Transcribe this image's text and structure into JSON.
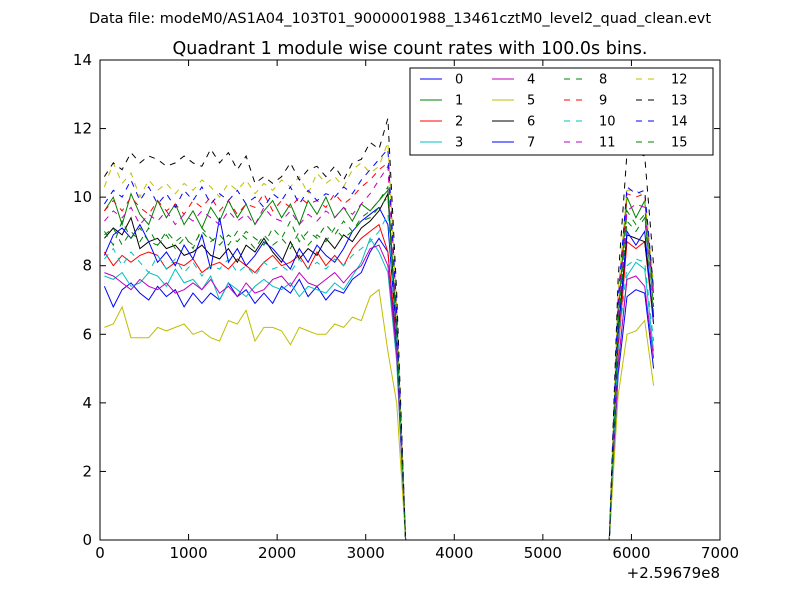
{
  "chart_data": {
    "type": "line",
    "suptitle": "Data file: modeM0/AS1A04_103T01_9000001988_13461cztM0_level2_quad_clean.evt",
    "title": "Quadrant 1 module wise count rates with 100.0s bins.",
    "xlabel": "",
    "ylabel": "",
    "xlim": [
      0,
      7000
    ],
    "ylim": [
      0,
      14
    ],
    "x_ticks": [
      0,
      1000,
      2000,
      3000,
      4000,
      5000,
      6000,
      7000
    ],
    "y_ticks": [
      0,
      2,
      4,
      6,
      8,
      10,
      12,
      14
    ],
    "x_offset_label": "+2.59679e8",
    "grid": false,
    "legend": {
      "position": "top-right",
      "columns": 4
    },
    "x": [
      50,
      150,
      250,
      350,
      450,
      550,
      650,
      750,
      850,
      950,
      1050,
      1150,
      1250,
      1350,
      1450,
      1550,
      1650,
      1750,
      1850,
      1950,
      2050,
      2150,
      2250,
      2350,
      2450,
      2550,
      2650,
      2750,
      2850,
      2950,
      3050,
      3150,
      3250,
      3350,
      3450,
      3550,
      3650,
      3750,
      3850,
      3950,
      4050,
      4150,
      4250,
      4350,
      4450,
      4550,
      4650,
      4750,
      4850,
      4950,
      5050,
      5150,
      5250,
      5350,
      5450,
      5550,
      5650,
      5750,
      5850,
      5950,
      6050,
      6150,
      6250
    ],
    "series": [
      {
        "name": "0",
        "color": "#0000ff",
        "dash": "solid",
        "values": [
          7.4,
          6.8,
          7.3,
          7.5,
          7.2,
          7.0,
          7.4,
          7.1,
          7.3,
          6.8,
          7.2,
          6.9,
          7.2,
          7.0,
          7.5,
          7.1,
          7.3,
          6.9,
          7.2,
          6.9,
          7.4,
          7.2,
          7.6,
          7.1,
          7.4,
          7.0,
          7.3,
          7.2,
          7.6,
          7.8,
          8.4,
          8.8,
          8.4,
          5.5,
          0,
          0,
          0,
          0,
          0,
          0,
          0,
          0,
          0,
          0,
          0,
          0,
          0,
          0,
          0,
          0,
          0,
          0,
          0,
          0,
          0,
          0,
          0,
          0,
          4.8,
          7.1,
          7.3,
          7.2,
          5.0
        ]
      },
      {
        "name": "1",
        "color": "#008000",
        "dash": "solid",
        "values": [
          9.6,
          10.0,
          9.2,
          10.1,
          9.5,
          9.2,
          9.9,
          9.4,
          9.8,
          9.2,
          9.6,
          9.1,
          9.7,
          9.3,
          9.9,
          9.4,
          9.8,
          9.2,
          9.6,
          9.9,
          9.4,
          9.8,
          9.2,
          9.9,
          9.5,
          10.0,
          9.4,
          9.7,
          9.3,
          9.8,
          9.6,
          9.9,
          10.2,
          6.0,
          0,
          0,
          0,
          0,
          0,
          0,
          0,
          0,
          0,
          0,
          0,
          0,
          0,
          0,
          0,
          0,
          0,
          0,
          0,
          0,
          0,
          0,
          0,
          0,
          6.5,
          10.0,
          9.4,
          9.9,
          7.2
        ]
      },
      {
        "name": "2",
        "color": "#ff0000",
        "dash": "solid",
        "values": [
          8.4,
          8.0,
          8.3,
          8.1,
          8.3,
          8.4,
          8.3,
          7.9,
          8.1,
          8.0,
          8.2,
          7.8,
          8.0,
          8.1,
          7.9,
          8.2,
          8.0,
          7.8,
          8.1,
          8.3,
          8.0,
          8.1,
          8.3,
          7.9,
          8.4,
          8.0,
          8.3,
          8.0,
          8.5,
          8.8,
          9.0,
          9.2,
          8.4,
          5.8,
          0,
          0,
          0,
          0,
          0,
          0,
          0,
          0,
          0,
          0,
          0,
          0,
          0,
          0,
          0,
          0,
          0,
          0,
          0,
          0,
          0,
          0,
          0,
          0,
          5.5,
          8.7,
          8.5,
          8.7,
          6.3
        ]
      },
      {
        "name": "3",
        "color": "#00bfbf",
        "dash": "solid",
        "values": [
          7.7,
          7.6,
          7.8,
          7.4,
          7.5,
          7.8,
          7.7,
          7.4,
          7.9,
          7.5,
          7.6,
          7.3,
          7.7,
          7.0,
          7.5,
          7.3,
          7.1,
          7.4,
          7.6,
          7.4,
          7.3,
          7.5,
          7.1,
          7.4,
          7.3,
          7.2,
          7.5,
          7.3,
          7.7,
          8.1,
          8.8,
          8.4,
          7.8,
          5.2,
          0,
          0,
          0,
          0,
          0,
          0,
          0,
          0,
          0,
          0,
          0,
          0,
          0,
          0,
          0,
          0,
          0,
          0,
          0,
          0,
          0,
          0,
          0,
          0,
          5.0,
          7.7,
          8.1,
          7.9,
          5.5
        ]
      },
      {
        "name": "4",
        "color": "#bf00bf",
        "dash": "solid",
        "values": [
          7.8,
          7.7,
          7.5,
          7.3,
          7.6,
          7.4,
          7.3,
          7.5,
          7.2,
          7.3,
          7.5,
          7.3,
          7.6,
          7.2,
          7.4,
          7.1,
          7.5,
          7.2,
          7.3,
          7.6,
          7.7,
          7.4,
          7.8,
          7.5,
          7.4,
          7.6,
          7.8,
          7.5,
          7.8,
          8.0,
          8.5,
          8.6,
          8.0,
          5.4,
          0,
          0,
          0,
          0,
          0,
          0,
          0,
          0,
          0,
          0,
          0,
          0,
          0,
          0,
          0,
          0,
          0,
          0,
          0,
          0,
          0,
          0,
          0,
          0,
          5.1,
          7.6,
          7.7,
          7.4,
          5.3
        ]
      },
      {
        "name": "5",
        "color": "#bfbf00",
        "dash": "solid",
        "values": [
          6.2,
          6.3,
          6.8,
          5.9,
          5.9,
          5.9,
          6.2,
          6.1,
          6.2,
          6.3,
          6.0,
          6.1,
          5.9,
          5.8,
          6.4,
          6.3,
          6.7,
          5.8,
          6.2,
          6.2,
          6.1,
          5.7,
          6.2,
          6.1,
          6.0,
          6.0,
          6.3,
          6.2,
          6.5,
          6.4,
          7.1,
          7.3,
          5.5,
          4.0,
          0,
          0,
          0,
          0,
          0,
          0,
          0,
          0,
          0,
          0,
          0,
          0,
          0,
          0,
          0,
          0,
          0,
          0,
          0,
          0,
          0,
          0,
          0,
          0,
          4.2,
          6.0,
          6.1,
          6.4,
          4.5
        ]
      },
      {
        "name": "6",
        "color": "#000000",
        "dash": "solid",
        "values": [
          8.8,
          9.1,
          8.9,
          9.4,
          8.5,
          8.7,
          8.8,
          8.5,
          8.6,
          8.3,
          8.4,
          8.6,
          8.3,
          8.2,
          8.5,
          8.1,
          8.6,
          8.4,
          8.8,
          8.4,
          8.1,
          8.7,
          8.2,
          8.5,
          8.3,
          8.8,
          8.5,
          8.9,
          8.7,
          9.1,
          9.3,
          9.6,
          10.1,
          6.0,
          0,
          0,
          0,
          0,
          0,
          0,
          0,
          0,
          0,
          0,
          0,
          0,
          0,
          0,
          0,
          0,
          0,
          0,
          0,
          0,
          0,
          0,
          0,
          0,
          6.0,
          8.9,
          8.8,
          8.7,
          6.5
        ]
      },
      {
        "name": "7",
        "color": "#0000ff",
        "dash": "solid",
        "values": [
          8.3,
          8.9,
          9.1,
          8.8,
          9.2,
          8.7,
          8.1,
          8.4,
          8.0,
          8.6,
          8.2,
          8.9,
          7.9,
          9.4,
          8.1,
          8.5,
          8.0,
          8.3,
          8.7,
          8.5,
          8.2,
          7.9,
          8.5,
          8.1,
          8.6,
          8.3,
          8.1,
          8.5,
          9.0,
          9.3,
          9.5,
          9.7,
          9.2,
          5.9,
          0,
          0,
          0,
          0,
          0,
          0,
          0,
          0,
          0,
          0,
          0,
          0,
          0,
          0,
          0,
          0,
          0,
          0,
          0,
          0,
          0,
          0,
          0,
          0,
          6.0,
          9.0,
          8.6,
          9.0,
          6.3
        ]
      },
      {
        "name": "8",
        "color": "#008000",
        "dash": "dashed",
        "values": [
          9.0,
          8.6,
          9.3,
          8.8,
          9.1,
          8.7,
          8.6,
          9.0,
          8.7,
          8.9,
          8.5,
          9.1,
          8.8,
          8.6,
          8.9,
          8.7,
          9.0,
          8.8,
          8.6,
          9.1,
          8.8,
          9.3,
          8.7,
          9.0,
          8.8,
          9.2,
          8.9,
          9.3,
          9.0,
          9.4,
          9.6,
          9.9,
          10.3,
          6.2,
          0,
          0,
          0,
          0,
          0,
          0,
          0,
          0,
          0,
          0,
          0,
          0,
          0,
          0,
          0,
          0,
          0,
          0,
          0,
          0,
          0,
          0,
          0,
          0,
          6.3,
          9.6,
          9.2,
          9.5,
          6.8
        ]
      },
      {
        "name": "9",
        "color": "#ff0000",
        "dash": "dashed",
        "values": [
          9.6,
          9.9,
          9.6,
          10.0,
          9.7,
          9.5,
          9.9,
          9.6,
          9.8,
          9.5,
          9.9,
          9.7,
          10.0,
          9.6,
          9.9,
          9.5,
          9.8,
          9.7,
          10.1,
          9.6,
          9.9,
          9.7,
          10.0,
          9.8,
          9.9,
          9.7,
          10.1,
          9.8,
          10.0,
          10.3,
          10.5,
          10.8,
          11.0,
          6.5,
          0,
          0,
          0,
          0,
          0,
          0,
          0,
          0,
          0,
          0,
          0,
          0,
          0,
          0,
          0,
          0,
          0,
          0,
          0,
          0,
          0,
          0,
          0,
          0,
          6.8,
          10.1,
          10.0,
          10.1,
          7.3
        ]
      },
      {
        "name": "10",
        "color": "#00bfbf",
        "dash": "dashed",
        "values": [
          8.2,
          8.5,
          8.0,
          8.4,
          8.1,
          7.8,
          8.3,
          7.9,
          8.2,
          7.8,
          8.1,
          7.7,
          8.0,
          7.9,
          8.2,
          7.8,
          8.0,
          7.7,
          8.1,
          7.9,
          8.0,
          7.8,
          8.2,
          7.9,
          8.1,
          7.9,
          8.2,
          8.0,
          8.3,
          8.5,
          8.7,
          9.0,
          9.5,
          5.9,
          0,
          0,
          0,
          0,
          0,
          0,
          0,
          0,
          0,
          0,
          0,
          0,
          0,
          0,
          0,
          0,
          0,
          0,
          0,
          0,
          0,
          0,
          0,
          0,
          5.6,
          8.0,
          8.2,
          8.1,
          5.8
        ]
      },
      {
        "name": "11",
        "color": "#bf00bf",
        "dash": "dashed",
        "values": [
          9.3,
          9.6,
          9.4,
          9.7,
          9.2,
          9.5,
          9.3,
          9.6,
          9.2,
          9.5,
          9.3,
          9.6,
          9.4,
          9.2,
          9.6,
          9.3,
          9.5,
          9.2,
          9.7,
          9.4,
          9.3,
          9.6,
          9.2,
          9.5,
          9.3,
          9.6,
          9.4,
          9.7,
          9.5,
          9.8,
          10.1,
          10.5,
          10.9,
          6.4,
          0,
          0,
          0,
          0,
          0,
          0,
          0,
          0,
          0,
          0,
          0,
          0,
          0,
          0,
          0,
          0,
          0,
          0,
          0,
          0,
          0,
          0,
          0,
          0,
          6.6,
          9.6,
          9.8,
          9.7,
          7.0
        ]
      },
      {
        "name": "12",
        "color": "#bfbf00",
        "dash": "dashed",
        "values": [
          10.3,
          11.0,
          10.4,
          10.7,
          10.0,
          10.5,
          10.2,
          10.4,
          10.1,
          10.4,
          10.2,
          10.5,
          10.3,
          10.0,
          10.4,
          10.2,
          10.5,
          10.1,
          10.4,
          10.2,
          10.5,
          10.3,
          10.6,
          10.1,
          10.7,
          10.4,
          10.6,
          10.3,
          10.8,
          11.0,
          10.7,
          10.9,
          11.6,
          6.8,
          0,
          0,
          0,
          0,
          0,
          0,
          0,
          0,
          0,
          0,
          0,
          0,
          0,
          0,
          0,
          0,
          0,
          0,
          0,
          0,
          0,
          0,
          0,
          0,
          7.2,
          10.2,
          10.2,
          10.0,
          7.5
        ]
      },
      {
        "name": "13",
        "color": "#000000",
        "dash": "dashed",
        "values": [
          10.6,
          11.0,
          10.8,
          11.3,
          11.0,
          11.2,
          11.1,
          10.9,
          11.0,
          11.2,
          11.0,
          10.9,
          11.4,
          11.0,
          11.3,
          10.8,
          11.2,
          10.4,
          10.6,
          10.4,
          10.6,
          11.0,
          10.5,
          10.8,
          10.9,
          10.6,
          10.9,
          10.5,
          11.0,
          11.1,
          11.6,
          11.4,
          12.3,
          7.2,
          0,
          0,
          0,
          0,
          0,
          0,
          0,
          0,
          0,
          0,
          0,
          0,
          0,
          0,
          0,
          0,
          0,
          0,
          0,
          0,
          0,
          0,
          0,
          0,
          7.6,
          11.3,
          11.3,
          11.2,
          8.0
        ]
      },
      {
        "name": "14",
        "color": "#0000ff",
        "dash": "dashed",
        "values": [
          9.8,
          10.2,
          10.0,
          10.5,
          9.9,
          10.3,
          9.8,
          10.1,
          9.7,
          10.2,
          9.9,
          10.3,
          9.8,
          10.1,
          9.9,
          10.2,
          9.8,
          10.0,
          9.7,
          10.1,
          9.9,
          10.3,
          9.8,
          10.2,
          9.9,
          10.1,
          10.0,
          10.3,
          10.1,
          10.5,
          10.8,
          11.1,
          11.4,
          6.7,
          0,
          0,
          0,
          0,
          0,
          0,
          0,
          0,
          0,
          0,
          0,
          0,
          0,
          0,
          0,
          0,
          0,
          0,
          0,
          0,
          0,
          0,
          0,
          0,
          7.0,
          10.3,
          10.1,
          10.2,
          7.3
        ]
      },
      {
        "name": "15",
        "color": "#008000",
        "dash": "dashed",
        "values": [
          8.9,
          9.1,
          8.6,
          9.0,
          8.7,
          9.1,
          8.6,
          8.9,
          8.5,
          8.8,
          8.6,
          9.0,
          8.7,
          8.9,
          8.6,
          9.0,
          8.8,
          8.5,
          8.9,
          8.6,
          8.8,
          8.5,
          9.0,
          8.6,
          8.9,
          8.7,
          9.1,
          8.8,
          9.0,
          9.3,
          9.4,
          9.7,
          10.0,
          6.1,
          0,
          0,
          0,
          0,
          0,
          0,
          0,
          0,
          0,
          0,
          0,
          0,
          0,
          0,
          0,
          0,
          0,
          0,
          0,
          0,
          0,
          0,
          0,
          0,
          6.2,
          9.3,
          9.0,
          9.4,
          6.6
        ]
      }
    ]
  }
}
